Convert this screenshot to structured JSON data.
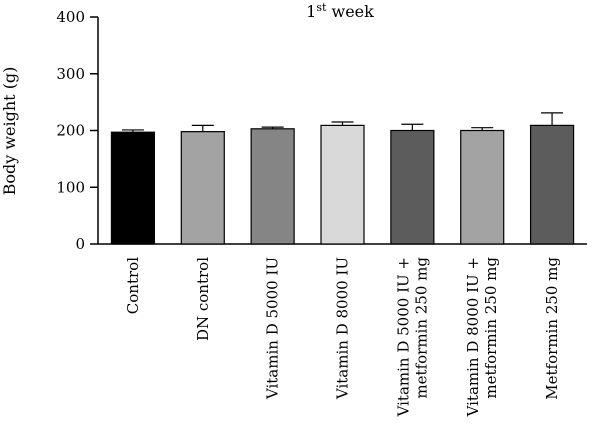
{
  "chart_data": {
    "type": "bar",
    "title_main": "1",
    "title_sup": "st",
    "title_rest": " week",
    "ylabel": "Body weight (g)",
    "xlabel": "",
    "ylim": [
      0,
      400
    ],
    "yticks": [
      "0",
      "100",
      "200",
      "300",
      "400"
    ],
    "categories": [
      [
        "Control"
      ],
      [
        "DN control"
      ],
      [
        "Vitamin D 5000 IU"
      ],
      [
        "Vitamin D 8000 IU"
      ],
      [
        "Vitamin D 5000 IU +",
        "metformin 250 mg"
      ],
      [
        "Vitamin D 8000 IU +",
        "metformin 250 mg"
      ],
      [
        "Metformin 250 mg"
      ]
    ],
    "values": [
      197,
      198,
      203,
      209,
      200,
      200,
      209
    ],
    "errors": [
      4,
      11,
      3,
      6,
      11,
      5,
      22
    ],
    "colors": [
      "#000000",
      "#a3a3a3",
      "#858585",
      "#d9d9d9",
      "#5c5c5c",
      "#a3a3a3",
      "#5c5c5c"
    ],
    "grid": false,
    "legend": "none"
  }
}
